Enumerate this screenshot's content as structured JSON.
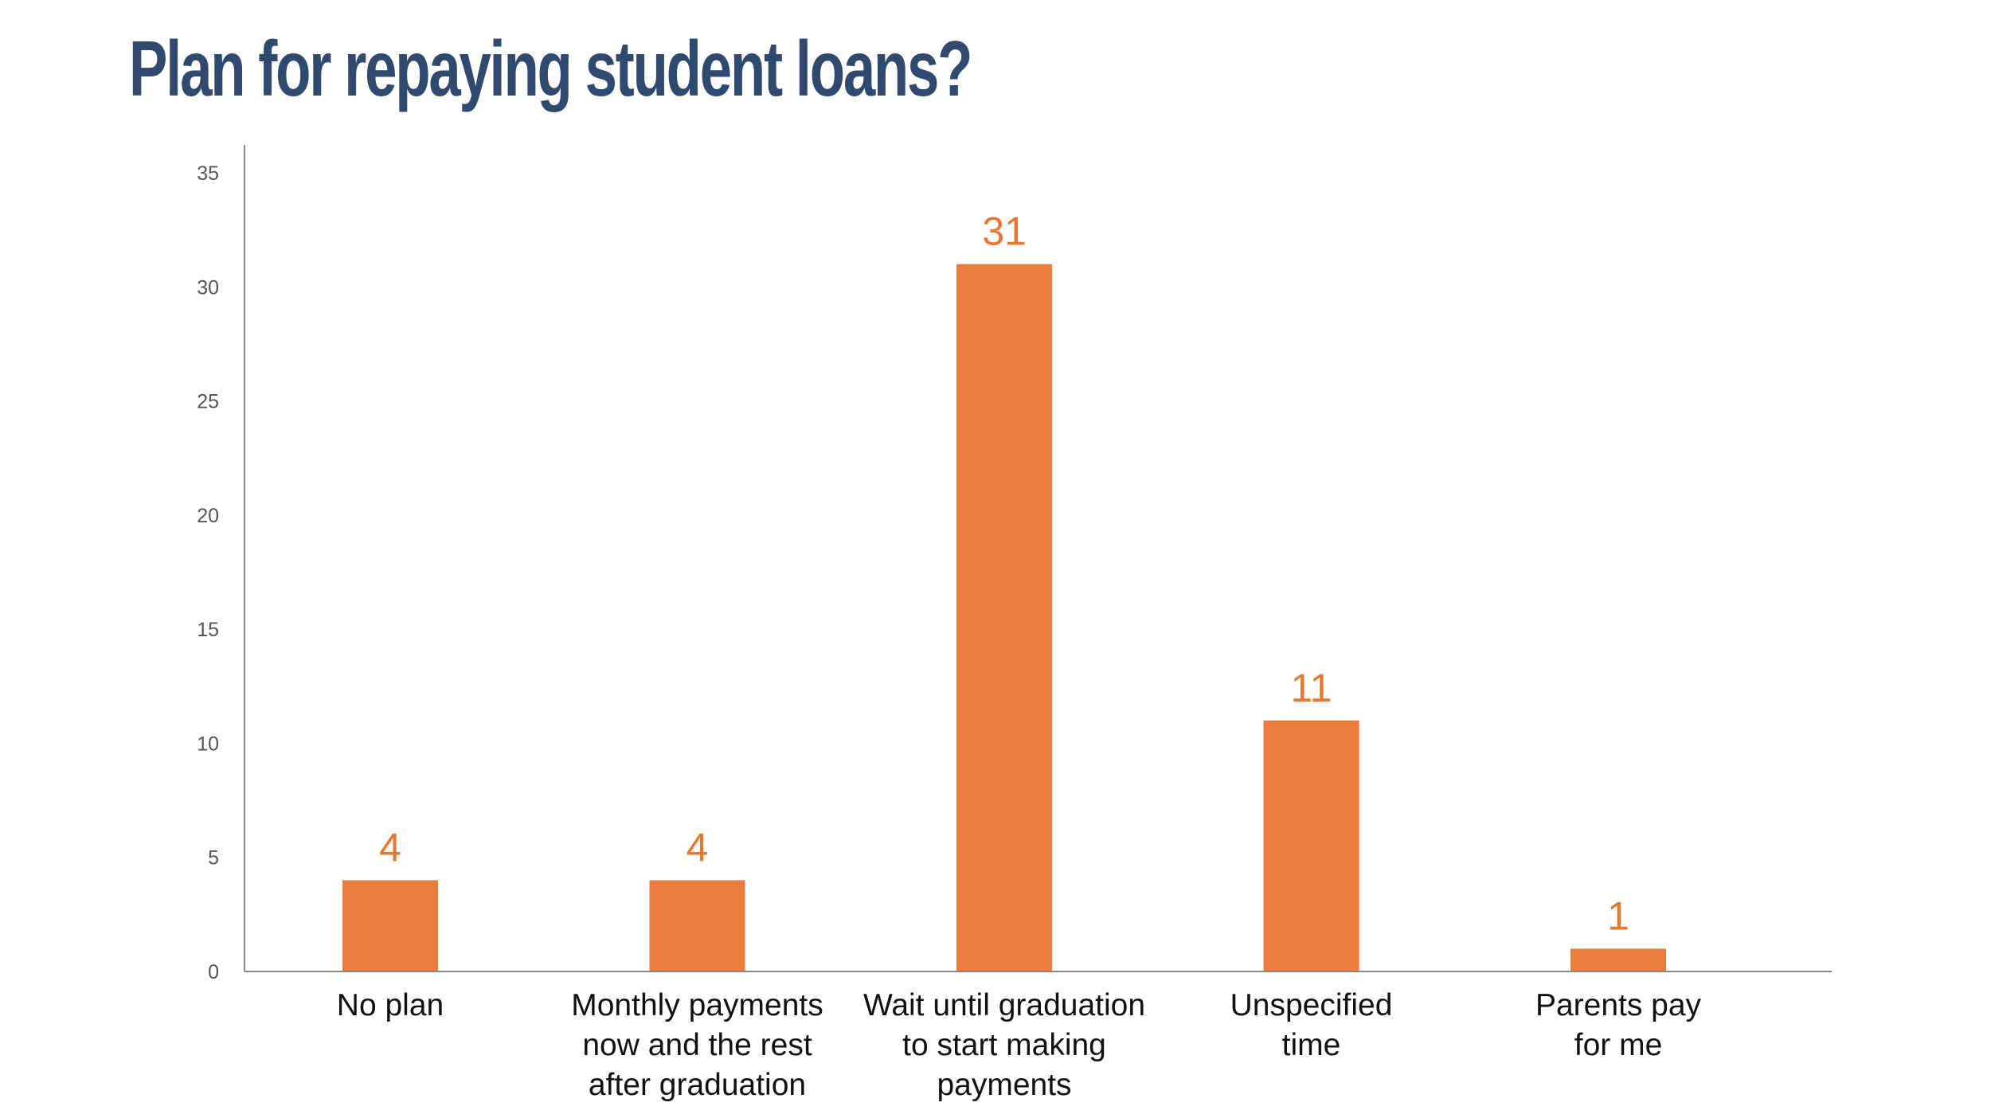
{
  "title": "Plan for repaying student loans?",
  "colors": {
    "bar": "#ea7d3c",
    "label": "#e8782f",
    "title": "#2f4a6e",
    "axis": "#888888"
  },
  "chart_data": {
    "type": "bar",
    "categories": [
      [
        "No plan"
      ],
      [
        "Monthly payments",
        "now and the rest",
        "after graduation"
      ],
      [
        "Wait until graduation",
        "to start making",
        "payments"
      ],
      [
        "Unspecified",
        "time"
      ],
      [
        "Parents pay",
        "for me"
      ]
    ],
    "values": [
      4,
      4,
      31,
      11,
      1
    ],
    "data_labels": [
      "4",
      "4",
      "31",
      "11",
      "1"
    ],
    "ylim": [
      0,
      35
    ],
    "yticks": [
      0,
      5,
      10,
      15,
      20,
      25,
      30,
      35
    ],
    "xlabel": "",
    "ylabel": "",
    "grid": false,
    "legend": "none"
  }
}
